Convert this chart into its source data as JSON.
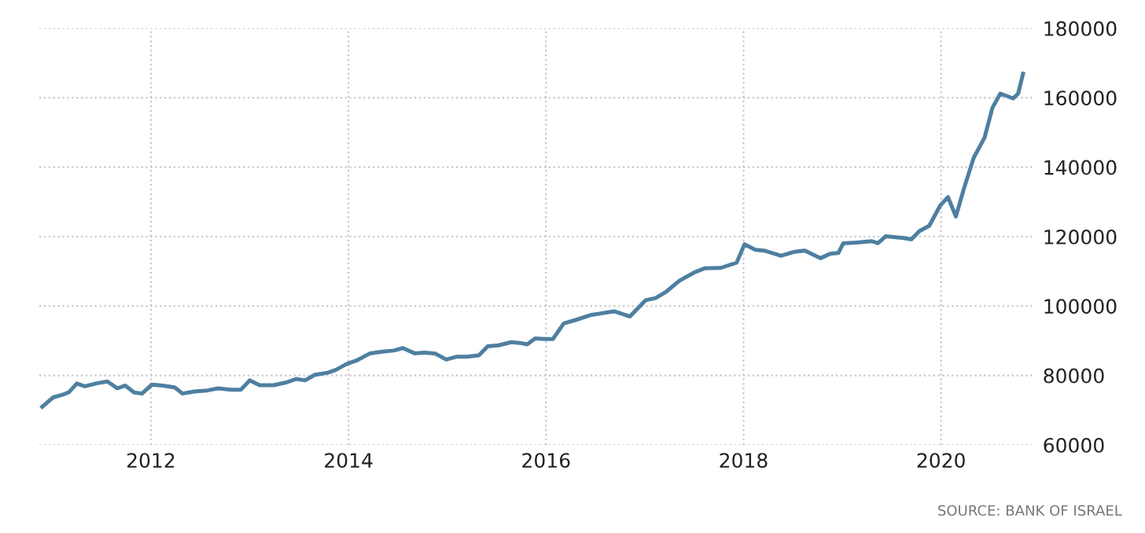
{
  "chart_data": {
    "type": "line",
    "x": [
      2010.9,
      2011.01,
      2011.11,
      2011.17,
      2011.25,
      2011.33,
      2011.46,
      2011.56,
      2011.66,
      2011.74,
      2011.83,
      2011.91,
      2012.01,
      2012.12,
      2012.24,
      2012.32,
      2012.44,
      2012.57,
      2012.68,
      2012.81,
      2012.91,
      2013.0,
      2013.1,
      2013.24,
      2013.37,
      2013.47,
      2013.56,
      2013.66,
      2013.79,
      2013.87,
      2013.98,
      2014.08,
      2014.22,
      2014.35,
      2014.46,
      2014.55,
      2014.67,
      2014.77,
      2014.88,
      2014.99,
      2015.09,
      2015.2,
      2015.32,
      2015.41,
      2015.52,
      2015.65,
      2015.73,
      2015.81,
      2015.89,
      2015.99,
      2016.07,
      2016.18,
      2016.3,
      2016.45,
      2016.69,
      2016.85,
      2017.01,
      2017.11,
      2017.22,
      2017.35,
      2017.51,
      2017.61,
      2017.77,
      2017.93,
      2018.01,
      2018.12,
      2018.22,
      2018.38,
      2018.51,
      2018.62,
      2018.78,
      2018.88,
      2018.96,
      2019.01,
      2019.15,
      2019.3,
      2019.36,
      2019.44,
      2019.62,
      2019.7,
      2019.78,
      2019.88,
      2019.99,
      2020.07,
      2020.15,
      2020.23,
      2020.33,
      2020.44,
      2020.52,
      2020.6,
      2020.73,
      2020.78,
      2020.83
    ],
    "series": [
      {
        "color": "#4e7fa1",
        "values": [
          71000,
          73700,
          74500,
          75200,
          77700,
          76900,
          77800,
          78300,
          76300,
          77100,
          75100,
          74800,
          77400,
          77100,
          76600,
          74800,
          75400,
          75700,
          76300,
          75900,
          75900,
          78600,
          77200,
          77200,
          78000,
          79000,
          78600,
          80200,
          80800,
          81600,
          83300,
          84300,
          86400,
          86900,
          87200,
          87900,
          86400,
          86600,
          86300,
          84600,
          85400,
          85400,
          85800,
          88400,
          88700,
          89600,
          89400,
          89000,
          90700,
          90500,
          90500,
          95000,
          96000,
          97400,
          98500,
          97000,
          101700,
          102300,
          104200,
          107300,
          109800,
          110900,
          111000,
          112500,
          117800,
          116200,
          115900,
          114500,
          115600,
          116000,
          113800,
          115100,
          115300,
          118100,
          118300,
          118700,
          118100,
          120100,
          119600,
          119200,
          121600,
          123100,
          128900,
          131400,
          125800,
          133700,
          142700,
          148500,
          157100,
          161200,
          159800,
          161200,
          166900
        ]
      }
    ],
    "xlim": [
      2010.87,
      2020.95
    ],
    "ylim": [
      60000,
      180000
    ],
    "xticks": [
      2012,
      2014,
      2016,
      2018,
      2020
    ],
    "yticks": [
      60000,
      80000,
      100000,
      120000,
      140000,
      160000,
      180000
    ],
    "grid": true,
    "marker": "none",
    "line_style": "solid",
    "annotations": [
      "SOURCE: BANK OF ISRAEL"
    ]
  }
}
